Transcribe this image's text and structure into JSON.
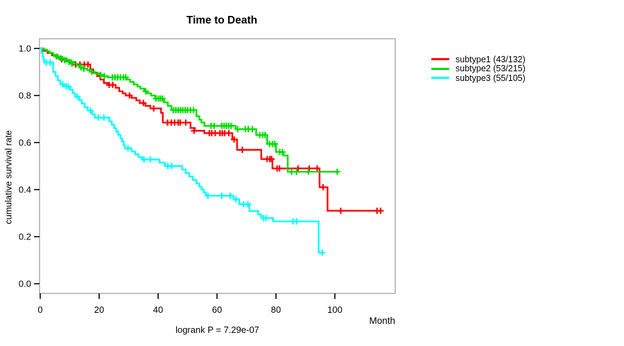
{
  "chart_data": {
    "type": "line",
    "variant": "kaplan-meier-step",
    "title": "Time to Death",
    "xlabel": "Month",
    "ylabel": "cumulative survival rate",
    "annotation": "logrank P = 7.29e-07",
    "x_ticks": [
      0,
      20,
      40,
      60,
      80,
      100
    ],
    "y_ticks": [
      0,
      0.2,
      0.4,
      0.6,
      0.8,
      1
    ],
    "xlim": [
      0,
      120
    ],
    "ylim": [
      0,
      1.04
    ],
    "grid": false,
    "legend_position": "outside-top-right",
    "series": [
      {
        "name": "subtype1 (43/132)",
        "color": "#ff0000",
        "steps": [
          [
            0,
            1.0
          ],
          [
            1,
            0.99
          ],
          [
            2.5,
            0.981
          ],
          [
            4,
            0.971
          ],
          [
            5.5,
            0.962
          ],
          [
            7,
            0.954
          ],
          [
            8.5,
            0.947
          ],
          [
            10,
            0.939
          ],
          [
            10.8,
            0.932
          ],
          [
            17,
            0.912
          ],
          [
            18,
            0.897
          ],
          [
            19.3,
            0.882
          ],
          [
            20.4,
            0.868
          ],
          [
            21.6,
            0.853
          ],
          [
            23,
            0.845
          ],
          [
            25.6,
            0.833
          ],
          [
            26.8,
            0.818
          ],
          [
            28,
            0.809
          ],
          [
            29,
            0.8
          ],
          [
            31,
            0.79
          ],
          [
            32.6,
            0.779
          ],
          [
            33.8,
            0.768
          ],
          [
            35.7,
            0.756
          ],
          [
            37.4,
            0.745
          ],
          [
            41,
            0.726
          ],
          [
            41.6,
            0.685
          ],
          [
            51,
            0.662
          ],
          [
            52.5,
            0.65
          ],
          [
            55.7,
            0.64
          ],
          [
            65.2,
            0.613
          ],
          [
            66.8,
            0.569
          ],
          [
            75,
            0.53
          ],
          [
            78.8,
            0.49
          ],
          [
            94.8,
            0.41
          ],
          [
            97.5,
            0.31
          ],
          [
            116,
            0.31
          ]
        ],
        "censors": [
          [
            7.3,
            0.954
          ],
          [
            12,
            0.932
          ],
          [
            13.5,
            0.932
          ],
          [
            15,
            0.932
          ],
          [
            16.2,
            0.932
          ],
          [
            23.4,
            0.845
          ],
          [
            24.6,
            0.845
          ],
          [
            30.3,
            0.8
          ],
          [
            35,
            0.768
          ],
          [
            38.5,
            0.745
          ],
          [
            43.2,
            0.685
          ],
          [
            44.5,
            0.685
          ],
          [
            45.6,
            0.685
          ],
          [
            46.8,
            0.685
          ],
          [
            47.5,
            0.685
          ],
          [
            49.4,
            0.685
          ],
          [
            52.2,
            0.65
          ],
          [
            57.4,
            0.64
          ],
          [
            58.2,
            0.64
          ],
          [
            59.4,
            0.64
          ],
          [
            61,
            0.64
          ],
          [
            61.8,
            0.64
          ],
          [
            62.6,
            0.64
          ],
          [
            64,
            0.64
          ],
          [
            65.8,
            0.613
          ],
          [
            68.6,
            0.569
          ],
          [
            77,
            0.53
          ],
          [
            77.9,
            0.53
          ],
          [
            78.5,
            0.53
          ],
          [
            80.4,
            0.49
          ],
          [
            81.2,
            0.49
          ],
          [
            87.5,
            0.49
          ],
          [
            91.3,
            0.49
          ],
          [
            94,
            0.49
          ],
          [
            96,
            0.41
          ],
          [
            102,
            0.31
          ],
          [
            114.3,
            0.31
          ],
          [
            115.5,
            0.31
          ]
        ]
      },
      {
        "name": "subtype2 (53/215)",
        "color": "#00dd00",
        "steps": [
          [
            0,
            1.0
          ],
          [
            1.2,
            0.995
          ],
          [
            2.2,
            0.988
          ],
          [
            3.2,
            0.98
          ],
          [
            4.5,
            0.972
          ],
          [
            6,
            0.965
          ],
          [
            7.5,
            0.958
          ],
          [
            9,
            0.95
          ],
          [
            10.5,
            0.943
          ],
          [
            11.5,
            0.935
          ],
          [
            12.5,
            0.928
          ],
          [
            13.5,
            0.92
          ],
          [
            15,
            0.914
          ],
          [
            16,
            0.908
          ],
          [
            17,
            0.901
          ],
          [
            18.5,
            0.894
          ],
          [
            20,
            0.888
          ],
          [
            21.5,
            0.882
          ],
          [
            23,
            0.877
          ],
          [
            29.4,
            0.868
          ],
          [
            30.5,
            0.858
          ],
          [
            31.7,
            0.847
          ],
          [
            33,
            0.838
          ],
          [
            34,
            0.829
          ],
          [
            35.3,
            0.818
          ],
          [
            36.4,
            0.809
          ],
          [
            37.6,
            0.8
          ],
          [
            39,
            0.787
          ],
          [
            42,
            0.771
          ],
          [
            43.3,
            0.756
          ],
          [
            44.5,
            0.738
          ],
          [
            53,
            0.712
          ],
          [
            54,
            0.697
          ],
          [
            54.7,
            0.685
          ],
          [
            55.7,
            0.671
          ],
          [
            66.3,
            0.657
          ],
          [
            73.3,
            0.632
          ],
          [
            77,
            0.594
          ],
          [
            80,
            0.56
          ],
          [
            82.5,
            0.545
          ],
          [
            84,
            0.476
          ],
          [
            101,
            0.476
          ]
        ],
        "censors": [
          [
            5.5,
            0.965
          ],
          [
            7,
            0.958
          ],
          [
            8.3,
            0.95
          ],
          [
            9.8,
            0.943
          ],
          [
            10.8,
            0.935
          ],
          [
            13.8,
            0.92
          ],
          [
            14.8,
            0.914
          ],
          [
            17.5,
            0.901
          ],
          [
            20.5,
            0.888
          ],
          [
            21.8,
            0.882
          ],
          [
            24.5,
            0.877
          ],
          [
            25.4,
            0.877
          ],
          [
            26.3,
            0.877
          ],
          [
            27.2,
            0.877
          ],
          [
            28.2,
            0.877
          ],
          [
            29,
            0.877
          ],
          [
            35.8,
            0.818
          ],
          [
            39.3,
            0.787
          ],
          [
            40.1,
            0.787
          ],
          [
            40.8,
            0.787
          ],
          [
            41.5,
            0.787
          ],
          [
            45.2,
            0.738
          ],
          [
            46,
            0.738
          ],
          [
            46.8,
            0.738
          ],
          [
            47.6,
            0.738
          ],
          [
            48.4,
            0.738
          ],
          [
            49.2,
            0.738
          ],
          [
            50,
            0.738
          ],
          [
            51,
            0.738
          ],
          [
            52,
            0.738
          ],
          [
            58,
            0.671
          ],
          [
            59,
            0.671
          ],
          [
            61.6,
            0.671
          ],
          [
            62.4,
            0.671
          ],
          [
            63.2,
            0.671
          ],
          [
            64,
            0.671
          ],
          [
            64.8,
            0.671
          ],
          [
            67,
            0.657
          ],
          [
            69.6,
            0.657
          ],
          [
            70.6,
            0.657
          ],
          [
            72,
            0.657
          ],
          [
            74.5,
            0.632
          ],
          [
            75.5,
            0.632
          ],
          [
            76.3,
            0.632
          ],
          [
            77.8,
            0.594
          ],
          [
            78.8,
            0.594
          ],
          [
            79.6,
            0.594
          ],
          [
            81.3,
            0.56
          ],
          [
            82.2,
            0.56
          ],
          [
            85.3,
            0.476
          ],
          [
            87,
            0.476
          ],
          [
            91,
            0.476
          ],
          [
            100.8,
            0.476
          ]
        ]
      },
      {
        "name": "subtype3 (55/105)",
        "color": "#00ffff",
        "steps": [
          [
            0,
            1.0
          ],
          [
            0.4,
            0.982
          ],
          [
            0.8,
            0.966
          ],
          [
            1.1,
            0.952
          ],
          [
            1.4,
            0.94
          ],
          [
            4.4,
            0.9
          ],
          [
            5.2,
            0.882
          ],
          [
            6,
            0.864
          ],
          [
            6.8,
            0.848
          ],
          [
            8.2,
            0.838
          ],
          [
            10.2,
            0.824
          ],
          [
            11,
            0.81
          ],
          [
            11.8,
            0.795
          ],
          [
            13.3,
            0.78
          ],
          [
            14.1,
            0.766
          ],
          [
            15,
            0.75
          ],
          [
            16.1,
            0.736
          ],
          [
            17.6,
            0.72
          ],
          [
            18.5,
            0.706
          ],
          [
            23.5,
            0.69
          ],
          [
            24.3,
            0.676
          ],
          [
            25.1,
            0.661
          ],
          [
            25.8,
            0.647
          ],
          [
            26.5,
            0.633
          ],
          [
            27.2,
            0.618
          ],
          [
            27.8,
            0.604
          ],
          [
            28.3,
            0.59
          ],
          [
            28.7,
            0.576
          ],
          [
            31,
            0.562
          ],
          [
            32.2,
            0.55
          ],
          [
            33.4,
            0.538
          ],
          [
            34.6,
            0.528
          ],
          [
            40.5,
            0.515
          ],
          [
            42.3,
            0.5
          ],
          [
            48.2,
            0.485
          ],
          [
            49.4,
            0.47
          ],
          [
            50.6,
            0.456
          ],
          [
            51.8,
            0.441
          ],
          [
            53,
            0.426
          ],
          [
            54,
            0.412
          ],
          [
            54.8,
            0.4
          ],
          [
            55.5,
            0.388
          ],
          [
            56.2,
            0.374
          ],
          [
            65.6,
            0.359
          ],
          [
            67.5,
            0.338
          ],
          [
            71,
            0.309
          ],
          [
            74,
            0.294
          ],
          [
            75,
            0.279
          ],
          [
            79,
            0.265
          ],
          [
            94.5,
            0.132
          ],
          [
            95.7,
            0.132
          ]
        ],
        "censors": [
          [
            2.1,
            0.94
          ],
          [
            3.4,
            0.94
          ],
          [
            7.6,
            0.848
          ],
          [
            8.9,
            0.838
          ],
          [
            9.6,
            0.838
          ],
          [
            12.6,
            0.795
          ],
          [
            17,
            0.736
          ],
          [
            19.7,
            0.706
          ],
          [
            21.6,
            0.706
          ],
          [
            29.8,
            0.576
          ],
          [
            35.2,
            0.528
          ],
          [
            37.4,
            0.528
          ],
          [
            43.3,
            0.5
          ],
          [
            44.6,
            0.5
          ],
          [
            56.9,
            0.374
          ],
          [
            61.6,
            0.374
          ],
          [
            64.5,
            0.374
          ],
          [
            66.4,
            0.359
          ],
          [
            69,
            0.338
          ],
          [
            70.5,
            0.338
          ],
          [
            75.8,
            0.279
          ],
          [
            76.6,
            0.279
          ],
          [
            85.8,
            0.265
          ],
          [
            87,
            0.265
          ],
          [
            95.7,
            0.132
          ]
        ]
      }
    ],
    "colors": {
      "axis_box": "#808080",
      "ticks_and_text": "#000000",
      "background": "#ffffff"
    }
  }
}
